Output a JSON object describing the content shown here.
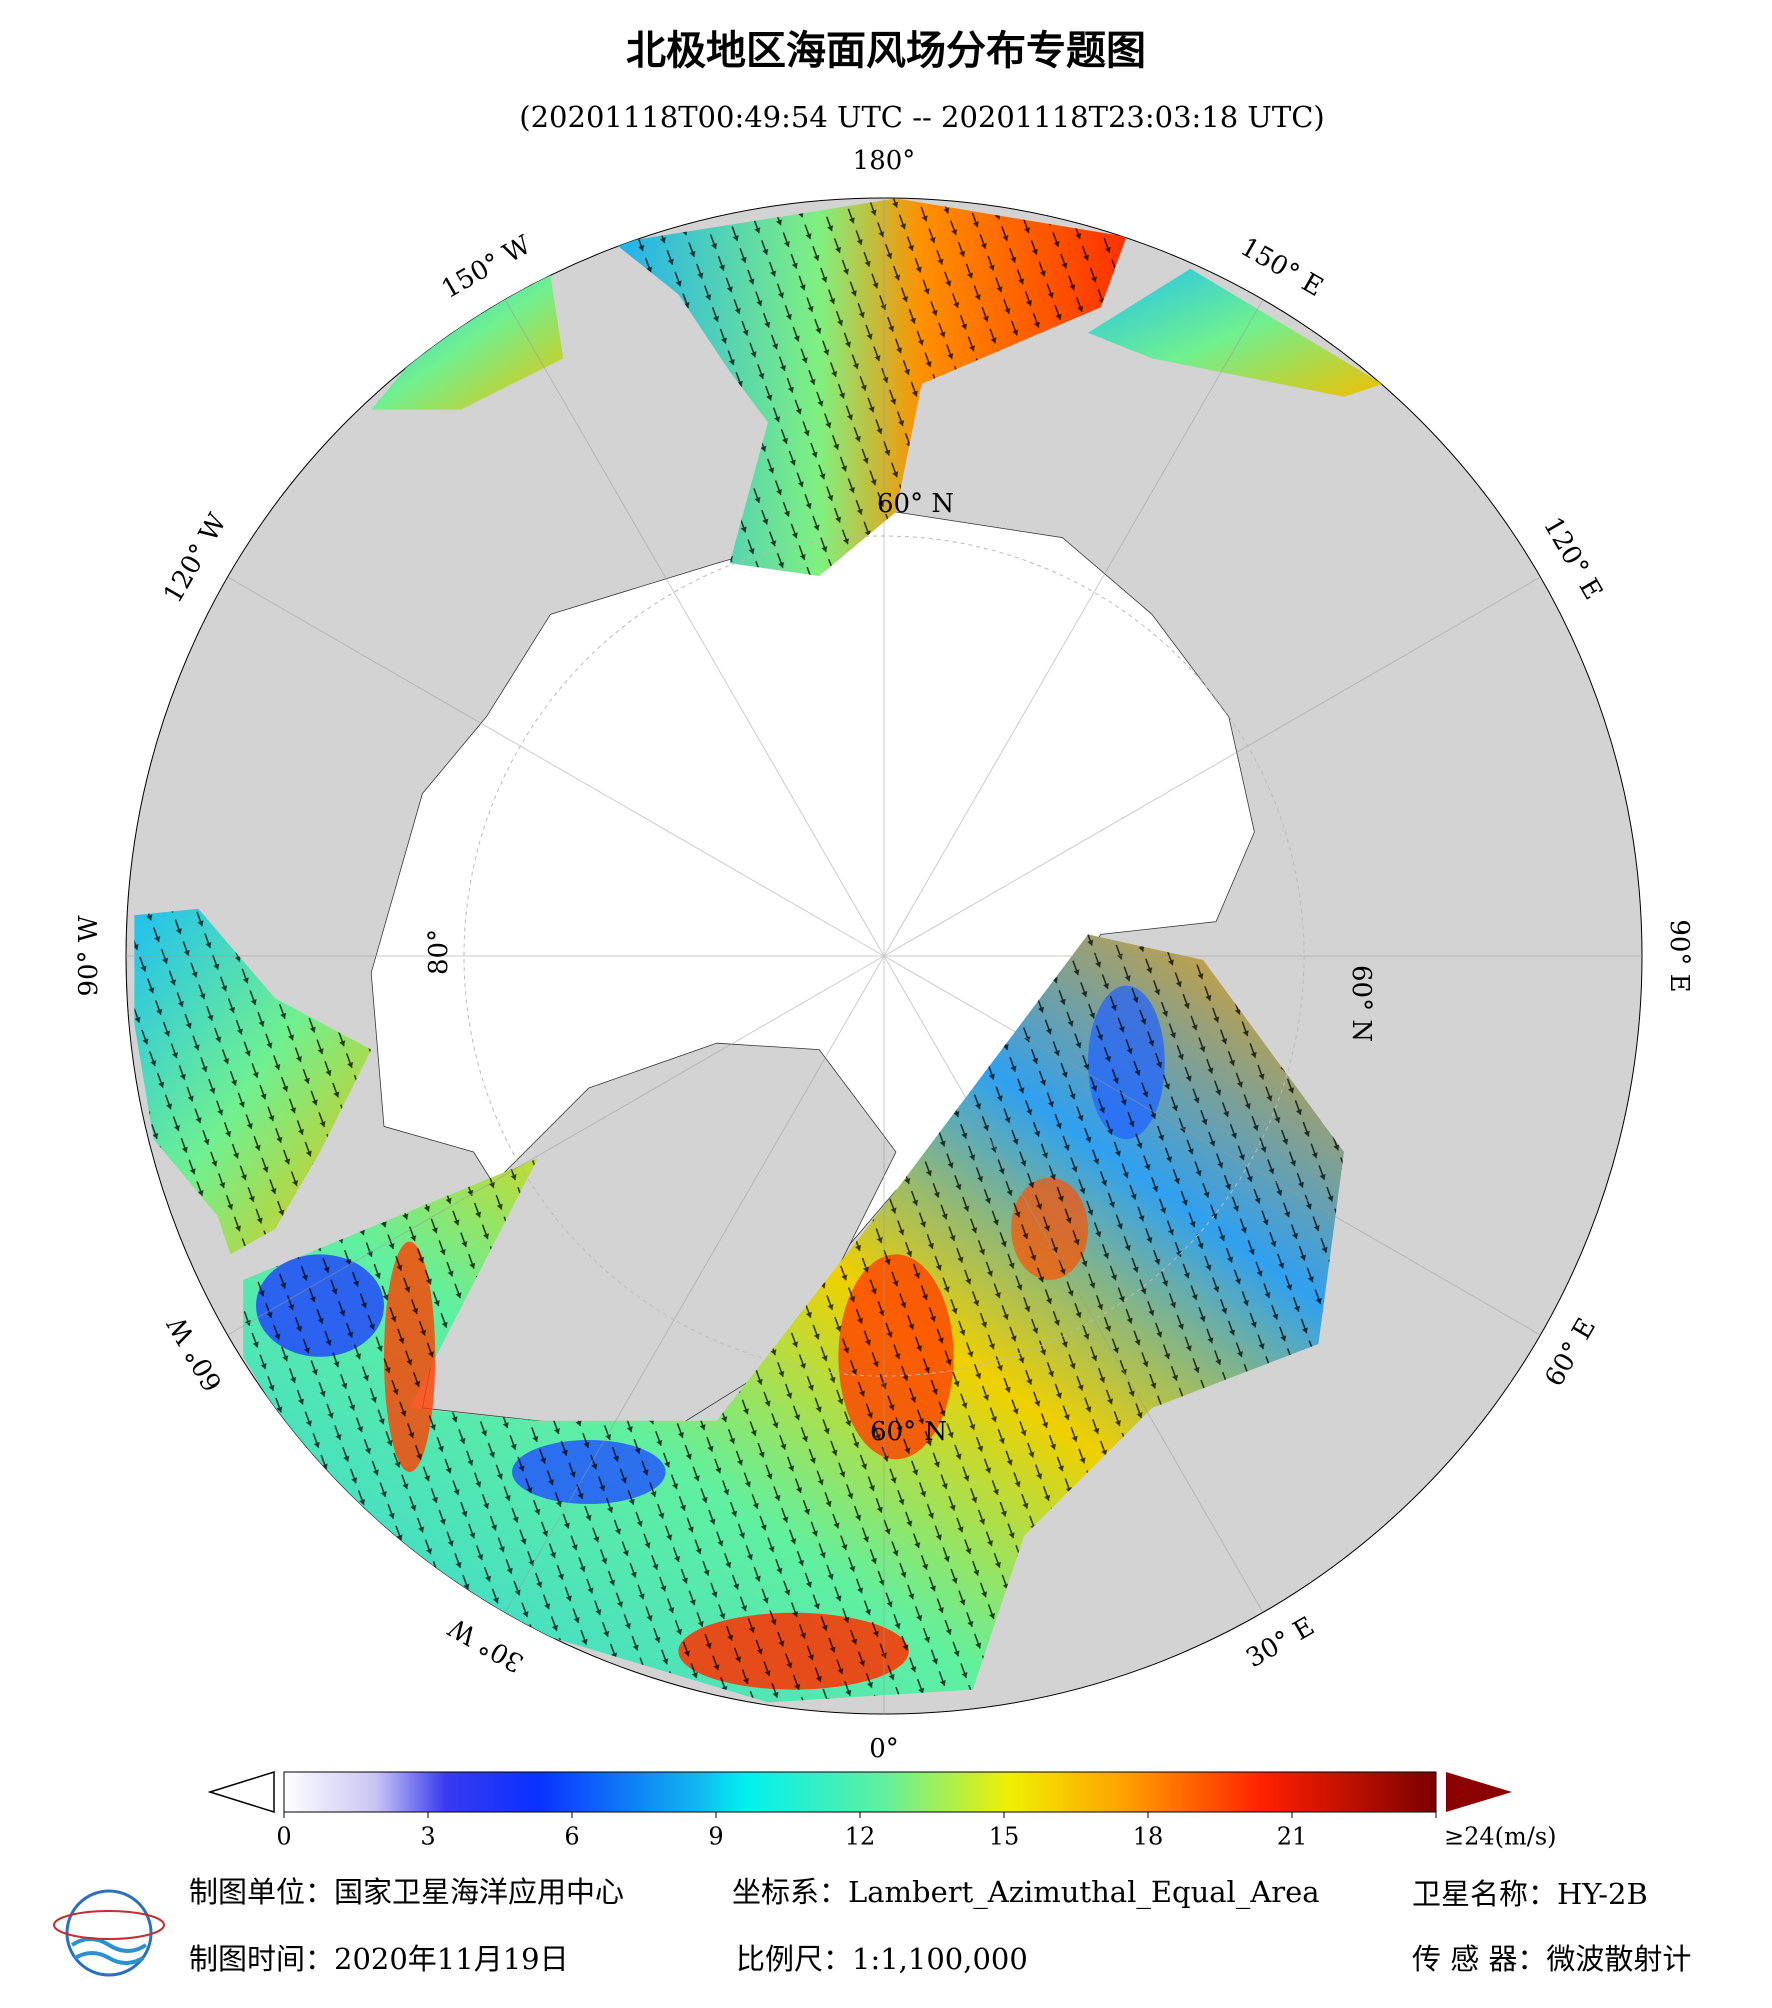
{
  "title": "北极地区海面风场分布专题图",
  "subtitle": "(20201118T00:49:54 UTC -- 20201118T23:03:18 UTC)",
  "map": {
    "longitude_labels": [
      "0°",
      "30° E",
      "60° E",
      "90° E",
      "120° E",
      "150° E",
      "180°",
      "150° W",
      "120° W",
      "90° W",
      "60° W",
      "30° W"
    ],
    "latitude_label": "60° N",
    "inner_latitude_label": "80°"
  },
  "colorbar": {
    "range": [
      0,
      24
    ],
    "ticks": [
      0,
      3,
      6,
      9,
      12,
      15,
      18,
      21,
      {
        "value": 24,
        "label": "≥24(m/s)"
      }
    ]
  },
  "footer": {
    "unit": "制图单位：国家卫星海洋应用中心",
    "coordinate_system": "坐标系：Lambert_Azimuthal_Equal_Area",
    "satellite": "卫星名称：HY-2B",
    "date": "制图时间：2020年11月19日",
    "scale": "比例尺：1:1,100,000",
    "sensor": "传 感 器：微波散射计"
  }
}
